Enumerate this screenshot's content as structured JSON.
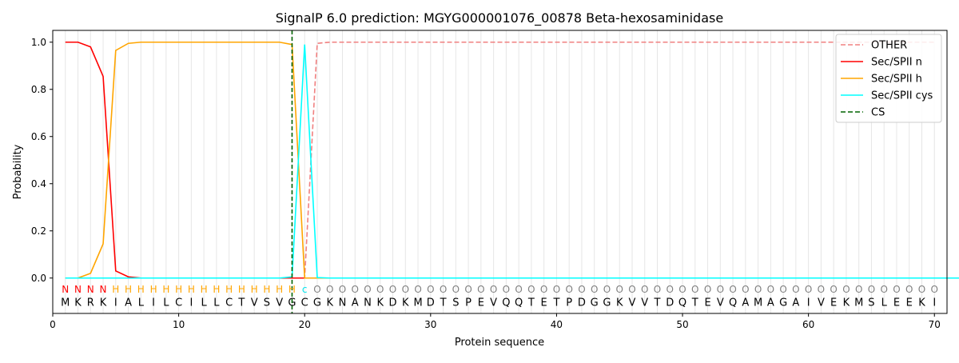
{
  "chart_data": {
    "type": "line",
    "title": "SignalP 6.0 prediction: MGYG000001076_00878 Beta-hexosaminidase",
    "xlabel": "Protein sequence",
    "ylabel": "Probability",
    "xlim": [
      0,
      71
    ],
    "ylim": [
      -0.15,
      1.05
    ],
    "xticks": [
      0,
      10,
      20,
      30,
      40,
      50,
      60,
      70
    ],
    "yticks": [
      0.0,
      0.2,
      0.4,
      0.6,
      0.8,
      1.0
    ],
    "ytick_labels": [
      "0.0",
      "0.2",
      "0.4",
      "0.6",
      "0.8",
      "1.0"
    ],
    "grid": "vertical lines at each residue",
    "legend_position": "top-right",
    "sequence": [
      "M",
      "K",
      "R",
      "K",
      "I",
      "A",
      "L",
      "I",
      "L",
      "C",
      "I",
      "L",
      "L",
      "C",
      "T",
      "V",
      "S",
      "V",
      "G",
      "C",
      "G",
      "K",
      "N",
      "A",
      "N",
      "K",
      "D",
      "K",
      "M",
      "D",
      "T",
      "S",
      "P",
      "E",
      "V",
      "Q",
      "Q",
      "T",
      "E",
      "T",
      "P",
      "D",
      "G",
      "G",
      "K",
      "V",
      "V",
      "T",
      "D",
      "Q",
      "T",
      "E",
      "V",
      "Q",
      "A",
      "M",
      "A",
      "G",
      "A",
      "I",
      "V",
      "E",
      "K",
      "M",
      "S",
      "L",
      "E",
      "E",
      "K",
      "I"
    ],
    "region_labels": [
      "N",
      "N",
      "N",
      "N",
      "H",
      "H",
      "H",
      "H",
      "H",
      "H",
      "H",
      "H",
      "H",
      "H",
      "H",
      "H",
      "H",
      "H",
      "H",
      "c",
      "O",
      "O",
      "O",
      "O",
      "O",
      "O",
      "O",
      "O",
      "O",
      "O",
      "O",
      "O",
      "O",
      "O",
      "O",
      "O",
      "O",
      "O",
      "O",
      "O",
      "O",
      "O",
      "O",
      "O",
      "O",
      "O",
      "O",
      "O",
      "O",
      "O",
      "O",
      "O",
      "O",
      "O",
      "O",
      "O",
      "O",
      "O",
      "O",
      "O",
      "O",
      "O",
      "O",
      "O",
      "O",
      "O",
      "O",
      "O",
      "O",
      "O"
    ],
    "region_colors": {
      "N": "#ff0000",
      "H": "#ffa500",
      "c": "#00e5ee",
      "O": "#808080"
    },
    "cs_position": 19,
    "series": [
      {
        "name": "OTHER",
        "color": "#f08080",
        "dash": "dashed",
        "values": [
          0,
          0,
          0,
          0,
          0,
          0,
          0,
          0,
          0,
          0,
          0,
          0,
          0,
          0,
          0,
          0,
          0,
          0,
          0,
          0,
          0.995,
          1,
          1,
          1,
          1,
          1,
          1,
          1,
          1,
          1,
          1,
          1,
          1,
          1,
          1,
          1,
          1,
          1,
          1,
          1,
          1,
          1,
          1,
          1,
          1,
          1,
          1,
          1,
          1,
          1,
          1,
          1,
          1,
          1,
          1,
          1,
          1,
          1,
          1,
          1,
          1,
          1,
          1,
          1,
          1,
          1,
          1,
          1,
          1,
          1
        ]
      },
      {
        "name": "Sec/SPII n",
        "color": "#ff0000",
        "dash": "solid",
        "values": [
          1,
          1,
          0.98,
          0.855,
          0.03,
          0.005,
          0,
          0,
          0,
          0,
          0,
          0,
          0,
          0,
          0,
          0,
          0,
          0,
          0,
          0,
          0,
          0,
          0,
          0,
          0,
          0,
          0,
          0,
          0,
          0,
          0,
          0,
          0,
          0,
          0,
          0,
          0,
          0,
          0,
          0,
          0,
          0,
          0,
          0,
          0,
          0,
          0,
          0,
          0,
          0,
          0,
          0,
          0,
          0,
          0,
          0,
          0,
          0,
          0,
          0,
          0,
          0,
          0,
          0,
          0,
          0,
          0,
          0,
          0,
          0
        ]
      },
      {
        "name": "Sec/SPII h",
        "color": "#ffa500",
        "dash": "solid",
        "values": [
          0,
          0,
          0.02,
          0.145,
          0.965,
          0.995,
          1,
          1,
          1,
          1,
          1,
          1,
          1,
          1,
          1,
          1,
          1,
          1,
          0.99,
          0,
          0,
          0,
          0,
          0,
          0,
          0,
          0,
          0,
          0,
          0,
          0,
          0,
          0,
          0,
          0,
          0,
          0,
          0,
          0,
          0,
          0,
          0,
          0,
          0,
          0,
          0,
          0,
          0,
          0,
          0,
          0,
          0,
          0,
          0,
          0,
          0,
          0,
          0,
          0,
          0,
          0,
          0,
          0,
          0,
          0,
          0,
          0,
          0,
          0,
          0
        ]
      },
      {
        "name": "Sec/SPII cys",
        "color": "#00ffff",
        "dash": "solid",
        "values": [
          0,
          0,
          0,
          0,
          0,
          0,
          0,
          0,
          0,
          0,
          0,
          0,
          0,
          0,
          0,
          0,
          0,
          0,
          0.005,
          0.99,
          0.002,
          0,
          0,
          0,
          0,
          0,
          0,
          0,
          0,
          0,
          0,
          0,
          0,
          0,
          0,
          0,
          0,
          0,
          0,
          0,
          0,
          0,
          0,
          0,
          0,
          0,
          0,
          0,
          0,
          0,
          0,
          0,
          0,
          0,
          0,
          0,
          0,
          0,
          0,
          0,
          0,
          0,
          0,
          0,
          0,
          0,
          0,
          0,
          0,
          0,
          0,
          0
        ]
      },
      {
        "name": "CS",
        "color": "#006400",
        "dash": "dashed",
        "values": []
      }
    ]
  }
}
